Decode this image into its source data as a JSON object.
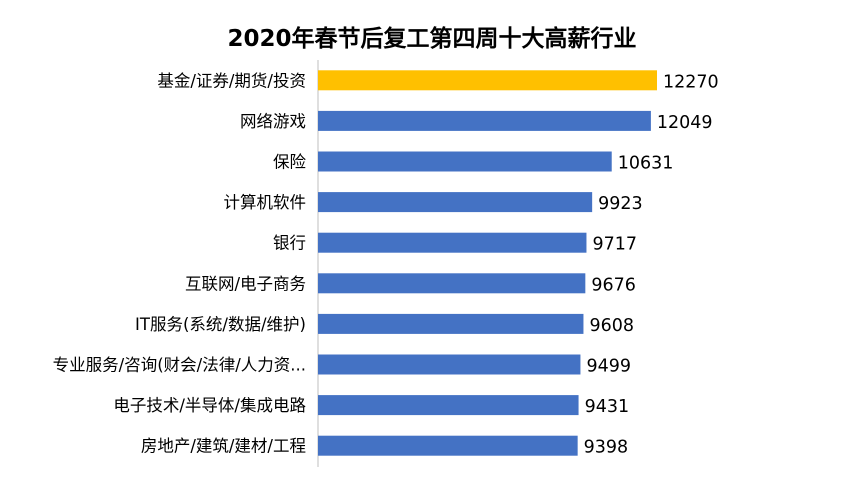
{
  "chart_data": {
    "type": "bar",
    "orientation": "horizontal",
    "title": "2020年春节后复工第四周十大高薪行业",
    "categories": [
      "基金/证券/期货/投资",
      "网络游戏",
      "保险",
      "计算机软件",
      "银行",
      "互联网/电子商务",
      "IT服务(系统/数据/维护)",
      "专业服务/咨询(财会/法律/人力资...",
      "电子技术/半导体/集成电路",
      "房地产/建筑/建材/工程"
    ],
    "values": [
      12270,
      12049,
      10631,
      9923,
      9717,
      9676,
      9608,
      9499,
      9431,
      9398
    ],
    "highlight_index": 0,
    "xlim": [
      0,
      12270
    ],
    "grid": false,
    "legend": "none",
    "colors": {
      "bar": "#4472C4",
      "highlight": "#FFC000",
      "axis": "#BFBFBF"
    }
  }
}
